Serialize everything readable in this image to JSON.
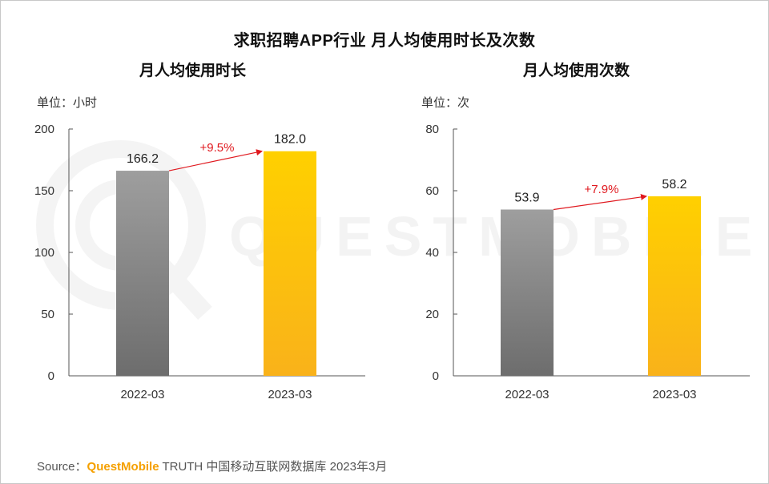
{
  "title": "求职招聘APP行业 月人均使用时长及次数",
  "watermark": "QUESTMOBILE",
  "colors": {
    "bar_2022_top": "#9e9e9e",
    "bar_2022_bottom": "#6d6d6d",
    "bar_2023_top": "#ffd000",
    "bar_2023_bottom": "#f9b21a",
    "growth_arrow": "#e0191f",
    "brand": "#f5a000"
  },
  "source": {
    "prefix": "Source：",
    "brand": "QuestMobile",
    "rest": " TRUTH 中国移动互联网数据库 2023年3月"
  },
  "chart_data": [
    {
      "type": "bar",
      "title": "月人均使用时长",
      "unit": "单位：小时",
      "categories": [
        "2022-03",
        "2023-03"
      ],
      "values": [
        166.2,
        182.0
      ],
      "value_labels": [
        "166.2",
        "182.0"
      ],
      "ylim": [
        0,
        200
      ],
      "yticks": [
        0,
        50,
        100,
        150,
        200
      ],
      "growth_label": "+9.5%",
      "grid": false
    },
    {
      "type": "bar",
      "title": "月人均使用次数",
      "unit": "单位：次",
      "categories": [
        "2022-03",
        "2023-03"
      ],
      "values": [
        53.9,
        58.2
      ],
      "value_labels": [
        "53.9",
        "58.2"
      ],
      "ylim": [
        0,
        80
      ],
      "yticks": [
        0,
        20,
        40,
        60,
        80
      ],
      "growth_label": "+7.9%",
      "grid": false
    }
  ]
}
